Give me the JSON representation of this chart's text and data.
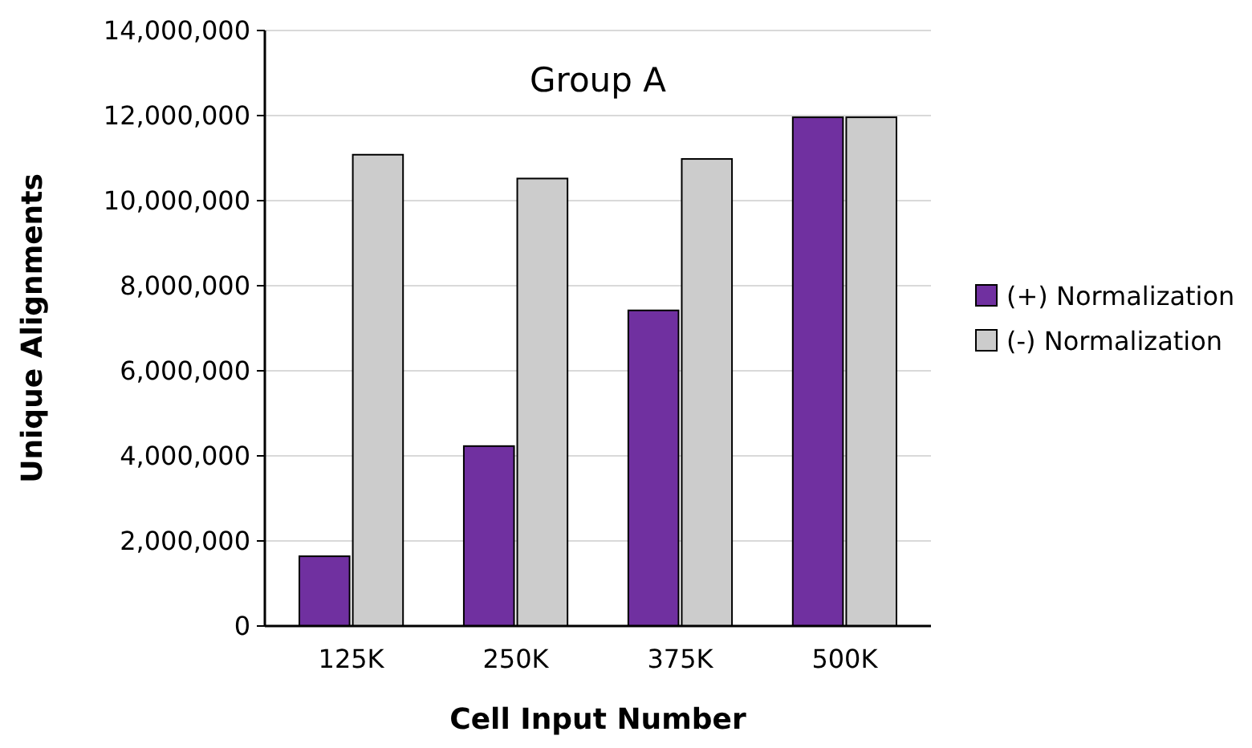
{
  "chart_data": {
    "type": "bar",
    "title": "Group A",
    "xlabel": "Cell Input Number",
    "ylabel": "Unique Alignments",
    "categories": [
      "125K",
      "250K",
      "375K",
      "500K"
    ],
    "series": [
      {
        "name": "(+) Normalization",
        "color": "#7030a0",
        "values": [
          1640000,
          4230000,
          7420000,
          11960000
        ]
      },
      {
        "name": "(-) Normalization",
        "color": "#cccccc",
        "values": [
          11080000,
          10520000,
          10980000,
          11960000
        ]
      }
    ],
    "ylim": [
      0,
      14000000
    ],
    "yticks": [
      {
        "value": 0,
        "label": "0"
      },
      {
        "value": 2000000,
        "label": "2,000,000"
      },
      {
        "value": 4000000,
        "label": "4,000,000"
      },
      {
        "value": 6000000,
        "label": "6,000,000"
      },
      {
        "value": 8000000,
        "label": "8,000,000"
      },
      {
        "value": 10000000,
        "label": "10,000,000"
      },
      {
        "value": 12000000,
        "label": "12,000,000"
      },
      {
        "value": 14000000,
        "label": "14,000,000"
      }
    ],
    "grid": "y",
    "legend": "right"
  }
}
